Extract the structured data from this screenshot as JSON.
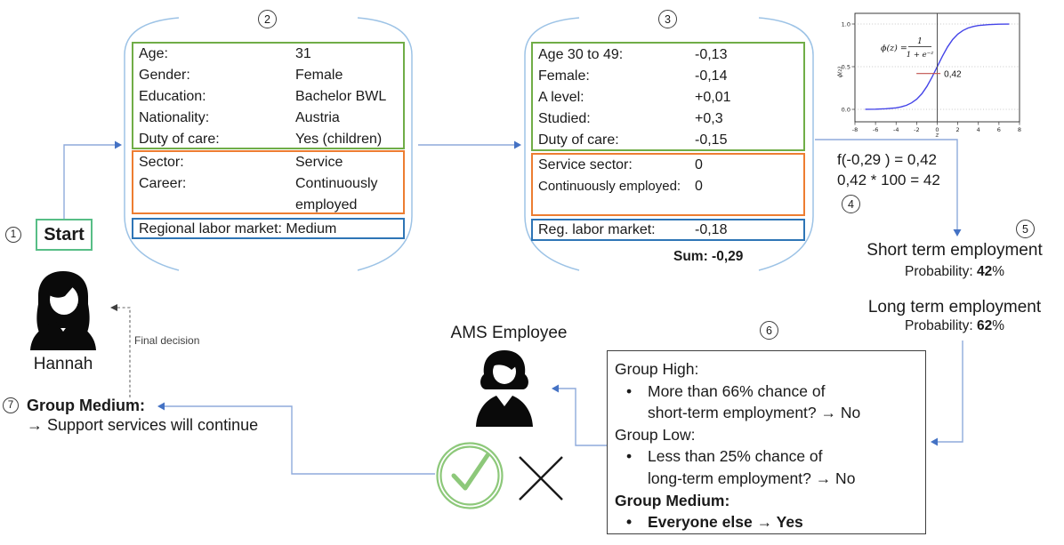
{
  "colors": {
    "green_border": "#70AD47",
    "orange_border": "#ED7D31",
    "blue_border": "#2E75B6",
    "start_border": "#57BE86",
    "connector": "#8FAADC",
    "brace": "#9DC3E6",
    "arrowhead": "#4472C4",
    "check_green": "#8DC87A",
    "curve_blue": "#4444E8",
    "annotation_red": "#C0504D"
  },
  "steps": {
    "s1": "1",
    "s2": "2",
    "s3": "3",
    "s4": "4",
    "s5": "5",
    "s6": "6",
    "s7": "7"
  },
  "start": {
    "label": "Start"
  },
  "profile_card": {
    "rows": [
      {
        "label": "Age:",
        "value": "31"
      },
      {
        "label": "Gender:",
        "value": "Female"
      },
      {
        "label": "Education:",
        "value": "Bachelor BWL"
      },
      {
        "label": "Nationality:",
        "value": "Austria"
      },
      {
        "label": "Duty of care:",
        "value": "Yes (children)"
      }
    ],
    "job_rows": [
      {
        "label": "Sector:",
        "value": "Service"
      },
      {
        "label": "Career:",
        "value": "Continuously employed"
      }
    ],
    "regional": "Regional labor market: Medium"
  },
  "coeff_card": {
    "rows": [
      {
        "label": "Age 30 to 49:",
        "value": "-0,13"
      },
      {
        "label": "Female:",
        "value": "-0,14"
      },
      {
        "label": "A level:",
        "value": "+0,01"
      },
      {
        "label": "Studied:",
        "value": "+0,3"
      },
      {
        "label": "Duty of care:",
        "value": "-0,15"
      }
    ],
    "job_rows": [
      {
        "label": "Service sector:",
        "value": "0"
      },
      {
        "label": "Continuously employed:",
        "value": "0"
      }
    ],
    "regional": {
      "label": "Reg. labor market:",
      "value": "-0,18"
    },
    "sum": "Sum: -0,29"
  },
  "chart_data": {
    "type": "line",
    "title": "",
    "formula": {
      "lhs": "ϕ(z) =",
      "numerator": "1",
      "denominator": "1 + e",
      "exponent": "−z"
    },
    "xlabel": "z",
    "ylabel": "ϕ(z)",
    "xlim": [
      -8,
      8
    ],
    "ylim": [
      0,
      1
    ],
    "x_ticks": [
      -8,
      -6,
      -4,
      -2,
      0,
      2,
      4,
      6,
      8
    ],
    "y_ticks": [
      0.0,
      0.5,
      1.0
    ],
    "grid": "dotted-horizontal",
    "series": [
      {
        "name": "sigmoid",
        "z": [
          -7,
          -6,
          -5,
          -4,
          -3.5,
          -3,
          -2.5,
          -2,
          -1.5,
          -1,
          -0.5,
          0,
          0.5,
          1,
          1.5,
          2,
          2.5,
          3,
          3.5,
          4,
          5,
          6,
          7
        ],
        "phi": [
          0.001,
          0.002,
          0.007,
          0.018,
          0.029,
          0.047,
          0.076,
          0.119,
          0.182,
          0.269,
          0.378,
          0.5,
          0.622,
          0.731,
          0.818,
          0.881,
          0.924,
          0.953,
          0.971,
          0.982,
          0.993,
          0.998,
          0.999
        ]
      }
    ],
    "annotation": {
      "label": "0,42",
      "value": 0.42,
      "x_at": -0.29
    }
  },
  "calculation": {
    "line1": "f(-0,29 ) = 0,42",
    "line2": "0,42 * 100 = 42"
  },
  "probabilities": {
    "short_title": "Short term employment",
    "prob_label": "Probability: ",
    "short_value": "42",
    "long_title": "Long term employment",
    "long_value": "62",
    "percent": "%"
  },
  "group_rules": {
    "lines": [
      {
        "text": "Group High:"
      },
      {
        "text": "More than 66% chance of"
      },
      {
        "text": "short-term employment? → No"
      },
      {
        "text": "Group Low:"
      },
      {
        "text": "Less than 25% chance of"
      },
      {
        "text": "long-term employment? → No"
      },
      {
        "text": "Group Medium:"
      },
      {
        "text": "Everyone else → Yes"
      }
    ]
  },
  "ams": {
    "title": "AMS Employee"
  },
  "hannah": {
    "name": "Hannah"
  },
  "decision": {
    "final_label": "Final decision",
    "title": "Group Medium:",
    "subtitle": "→ Support services will continue"
  }
}
